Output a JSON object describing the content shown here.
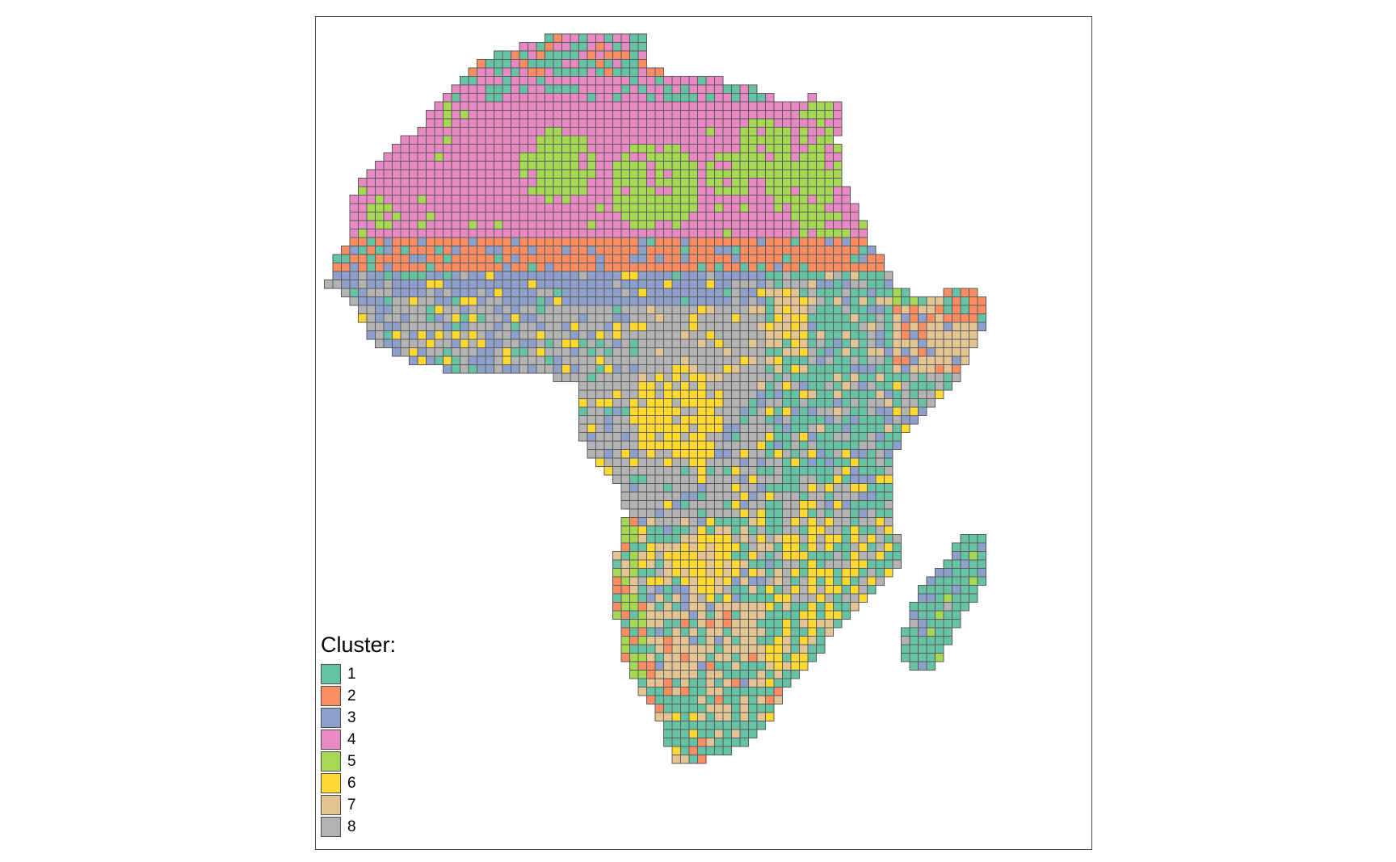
{
  "map": {
    "legend_title": "Cluster:",
    "cell_border_color": "#5a5a5a",
    "frame_border_color": "#4d4d4d",
    "classes": [
      {
        "label": "1",
        "color": "#66C2A5"
      },
      {
        "label": "2",
        "color": "#FC8D62"
      },
      {
        "label": "3",
        "color": "#8DA0CB"
      },
      {
        "label": "4",
        "color": "#E78AC3"
      },
      {
        "label": "5",
        "color": "#A6D854"
      },
      {
        "label": "6",
        "color": "#FFD92F"
      },
      {
        "label": "7",
        "color": "#E5C494"
      },
      {
        "label": "8",
        "color": "#B3B3B3"
      }
    ]
  }
}
